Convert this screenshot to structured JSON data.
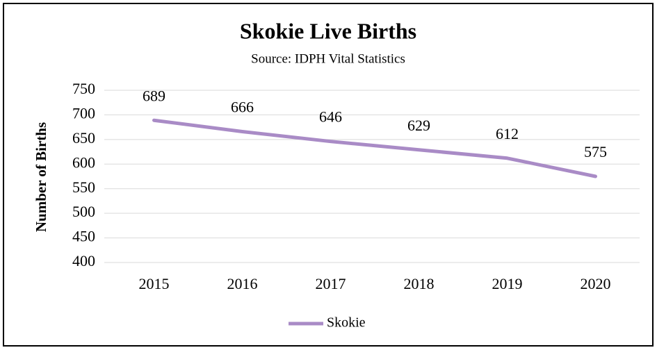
{
  "chart_data": {
    "type": "line",
    "title": "Skokie Live Births",
    "subtitle": "Source: IDPH Vital Statistics",
    "y_label": "Number of Births",
    "categories": [
      "2015",
      "2016",
      "2017",
      "2018",
      "2019",
      "2020"
    ],
    "series": [
      {
        "name": "Skokie",
        "color": "#a98bc6",
        "values": [
          689,
          666,
          646,
          629,
          612,
          575
        ]
      }
    ],
    "ylim": [
      400,
      750
    ],
    "yticks": [
      400,
      450,
      500,
      550,
      600,
      650,
      700,
      750
    ],
    "grid": true,
    "legend": "bottom"
  }
}
